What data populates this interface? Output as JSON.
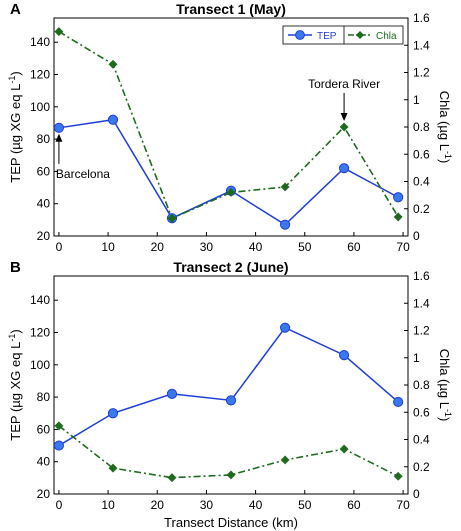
{
  "colors": {
    "tep": "#1f3fd6",
    "tep_fill": "#3a78f0",
    "chla": "#1e6b1e"
  },
  "chart_data": [
    {
      "type": "line",
      "panel": "A",
      "title": "Transect 1 (May)",
      "xlabel": "",
      "ylabel": "TEP (µg XG eq L",
      "ylabel_sup": "-1",
      "ylabel_close": ")",
      "y2label": "Chla (µg L",
      "y2label_sup": "-1",
      "y2label_close": ")",
      "x_ticks": [
        "0",
        "10",
        "20",
        "30",
        "40",
        "50",
        "60",
        "70"
      ],
      "y_ticks": [
        "20",
        "40",
        "60",
        "80",
        "100",
        "120",
        "140"
      ],
      "y2_ticks": [
        "0",
        "0.2",
        "0.4",
        "0.6",
        "0.8",
        "1",
        "1.2",
        "1.4",
        "1.6"
      ],
      "xlim": [
        -1,
        71
      ],
      "ylim": [
        20,
        155
      ],
      "y2lim": [
        0,
        1.6
      ],
      "legend": {
        "placement": "top-right",
        "tep": "TEP",
        "chla": "Chla"
      },
      "series": [
        {
          "name": "TEP",
          "axis": "left",
          "x": [
            0,
            11,
            23,
            35,
            46,
            58,
            69
          ],
          "values": [
            87,
            92,
            31,
            48,
            27,
            62,
            44
          ]
        },
        {
          "name": "Chla",
          "axis": "right",
          "x": [
            0,
            11,
            23,
            35,
            46,
            58,
            69
          ],
          "values": [
            1.5,
            1.26,
            0.13,
            0.32,
            0.36,
            0.8,
            0.14
          ]
        }
      ],
      "annotations": [
        {
          "label": "Barcelona",
          "x": 0
        },
        {
          "label": "Tordera River",
          "x": 58
        }
      ]
    },
    {
      "type": "line",
      "panel": "B",
      "title": "Transect 2 (June)",
      "xlabel": "Transect Distance (km)",
      "ylabel": "TEP (µg XG eq L",
      "ylabel_sup": "-1",
      "ylabel_close": ")",
      "y2label": "Chla (µg L",
      "y2label_sup": "-1",
      "y2label_close": ")",
      "x_ticks": [
        "0",
        "10",
        "20",
        "30",
        "40",
        "50",
        "60",
        "70"
      ],
      "y_ticks": [
        "20",
        "40",
        "60",
        "80",
        "100",
        "120",
        "140"
      ],
      "y2_ticks": [
        "0",
        "0.2",
        "0.4",
        "0.6",
        "0.8",
        "1",
        "1.2",
        "1.4",
        "1.6"
      ],
      "xlim": [
        -1,
        71
      ],
      "ylim": [
        20,
        155
      ],
      "y2lim": [
        0,
        1.6
      ],
      "series": [
        {
          "name": "TEP",
          "axis": "left",
          "x": [
            0,
            11,
            23,
            35,
            46,
            58,
            69
          ],
          "values": [
            50,
            70,
            82,
            78,
            123,
            106,
            77
          ]
        },
        {
          "name": "Chla",
          "axis": "right",
          "x": [
            0,
            11,
            23,
            35,
            46,
            58,
            69
          ],
          "values": [
            0.5,
            0.19,
            0.12,
            0.14,
            0.25,
            0.33,
            0.13
          ]
        }
      ]
    }
  ]
}
